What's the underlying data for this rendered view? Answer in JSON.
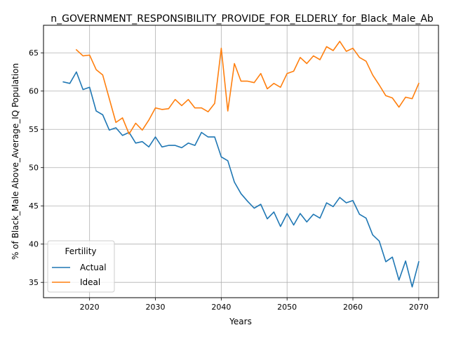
{
  "colors": {
    "actual": "#1f77b4",
    "ideal": "#ff7f0e",
    "grid": "#b0b0b0",
    "axis": "#000000"
  },
  "chart_data": {
    "type": "line",
    "title": "n_GOVERNMENT_RESPONSIBILITY_PROVIDE_FOR_ELDERLY_for_Black_Male_Ab",
    "xlabel": "Years",
    "ylabel": "% of Black_Male Above_Average_IQ Population",
    "xlim": [
      2013,
      2073
    ],
    "ylim": [
      33.0,
      68.6
    ],
    "grid": true,
    "legend": {
      "title": "Fertility",
      "position": "lower-left"
    },
    "x_ticks": [
      2020,
      2030,
      2040,
      2050,
      2060,
      2070
    ],
    "y_ticks": [
      35,
      40,
      45,
      50,
      55,
      60,
      65
    ],
    "series": [
      {
        "name": "Actual",
        "x": [
          2016,
          2017,
          2018,
          2019,
          2020,
          2021,
          2022,
          2023,
          2024,
          2025,
          2026,
          2027,
          2028,
          2029,
          2030,
          2031,
          2032,
          2033,
          2034,
          2035,
          2036,
          2037,
          2038,
          2039,
          2040,
          2041,
          2042,
          2043,
          2044,
          2045,
          2046,
          2047,
          2048,
          2049,
          2050,
          2051,
          2052,
          2053,
          2054,
          2055,
          2056,
          2057,
          2058,
          2059,
          2060,
          2061,
          2062,
          2063,
          2064,
          2065,
          2066,
          2067,
          2068,
          2069,
          2070
        ],
        "values": [
          61.2,
          61.0,
          62.5,
          60.2,
          60.5,
          57.4,
          56.9,
          54.9,
          55.2,
          54.2,
          54.6,
          53.2,
          53.4,
          52.7,
          54.0,
          52.7,
          52.9,
          52.9,
          52.6,
          53.2,
          52.9,
          54.6,
          54.0,
          54.0,
          51.4,
          50.9,
          48.1,
          46.6,
          45.6,
          44.7,
          45.2,
          43.3,
          44.2,
          42.3,
          44.0,
          42.5,
          44.0,
          42.9,
          43.9,
          43.4,
          45.4,
          44.9,
          46.1,
          45.4,
          45.7,
          43.9,
          43.4,
          41.2,
          40.4,
          37.7,
          38.3,
          35.3,
          37.8,
          34.4,
          37.7
        ]
      },
      {
        "name": "Ideal",
        "x": [
          2018,
          2019,
          2020,
          2021,
          2022,
          2023,
          2024,
          2025,
          2026,
          2027,
          2028,
          2029,
          2030,
          2031,
          2032,
          2033,
          2034,
          2035,
          2036,
          2037,
          2038,
          2039,
          2040,
          2041,
          2042,
          2043,
          2044,
          2045,
          2046,
          2047,
          2048,
          2049,
          2050,
          2051,
          2052,
          2053,
          2054,
          2055,
          2056,
          2057,
          2058,
          2059,
          2060,
          2061,
          2062,
          2063,
          2064,
          2065,
          2066,
          2067,
          2068,
          2069,
          2070
        ],
        "values": [
          65.4,
          64.6,
          64.7,
          62.8,
          62.1,
          59.0,
          55.9,
          56.5,
          54.4,
          55.8,
          54.9,
          56.2,
          57.8,
          57.6,
          57.7,
          58.9,
          58.1,
          58.9,
          57.8,
          57.8,
          57.3,
          58.4,
          65.6,
          57.4,
          63.6,
          61.3,
          61.3,
          61.1,
          62.3,
          60.3,
          61.0,
          60.5,
          62.3,
          62.6,
          64.4,
          63.6,
          64.6,
          64.1,
          65.8,
          65.3,
          66.5,
          65.2,
          65.6,
          64.4,
          63.9,
          62.1,
          60.8,
          59.4,
          59.1,
          57.9,
          59.2,
          59.0,
          61.0
        ]
      }
    ]
  }
}
